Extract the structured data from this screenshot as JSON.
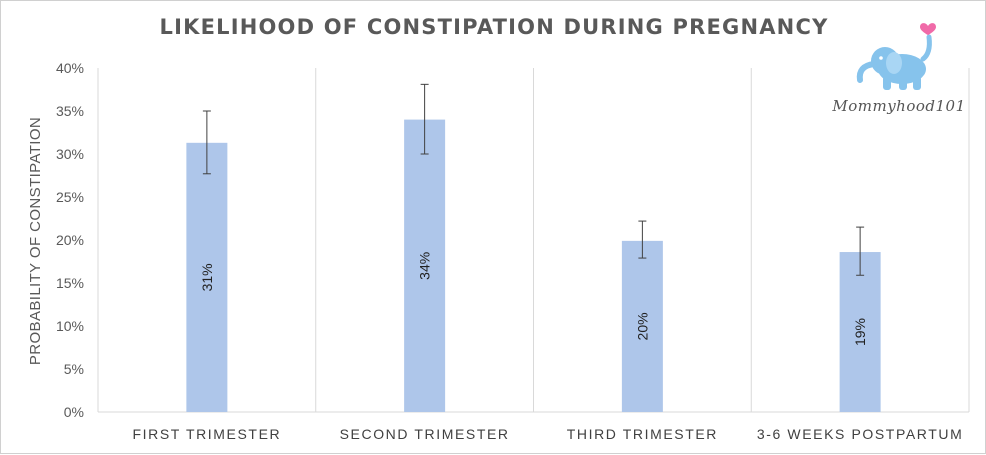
{
  "chart_data": {
    "type": "bar",
    "title": "LIKELIHOOD OF CONSTIPATION DURING PREGNANCY",
    "ylabel": "PROBABILITY OF CONSTIPATION",
    "xlabel": "",
    "categories": [
      "FIRST TRIMESTER",
      "SECOND TRIMESTER",
      "THIRD TRIMESTER",
      "3-6 WEEKS POSTPARTUM"
    ],
    "values": [
      31.3,
      34.0,
      19.9,
      18.6
    ],
    "data_labels": [
      "31%",
      "34%",
      "20%",
      "19%"
    ],
    "error_bars": [
      {
        "low": 27.7,
        "high": 35.0
      },
      {
        "low": 30.0,
        "high": 38.1
      },
      {
        "low": 17.9,
        "high": 22.2
      },
      {
        "low": 15.9,
        "high": 21.5
      }
    ],
    "ylim": [
      0,
      40
    ],
    "yticks": [
      0,
      5,
      10,
      15,
      20,
      25,
      30,
      35,
      40
    ],
    "ytick_labels": [
      "0%",
      "5%",
      "10%",
      "15%",
      "20%",
      "25%",
      "30%",
      "35%",
      "40%"
    ],
    "grid": "vertical category separators",
    "legend": "none",
    "bar_color": "#aec6ea"
  },
  "brand": {
    "text": "Mommyhood101",
    "logo_icon": "elephant-icon",
    "heart_icon": "heart-icon",
    "logo_color": "#86c3ec",
    "heart_color": "#f06aa8"
  }
}
